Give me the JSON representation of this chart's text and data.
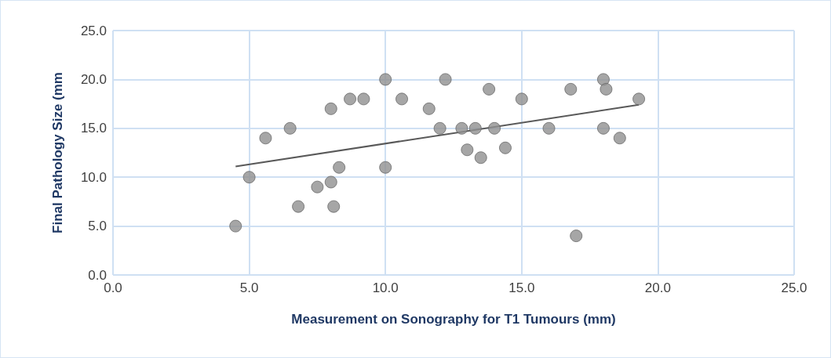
{
  "chart_data": {
    "type": "scatter",
    "xlabel": "Measurement on Sonography for T1 Tumours (mm)",
    "ylabel": "Final Pathology Size (mm",
    "xlim": [
      0,
      25
    ],
    "xticks": [
      {
        "value": 0,
        "label": "0.0"
      },
      {
        "value": 5,
        "label": "5.0"
      },
      {
        "value": 10,
        "label": "10.0"
      },
      {
        "value": 15,
        "label": "15.0"
      },
      {
        "value": 20,
        "label": "20.0"
      },
      {
        "value": 25,
        "label": "25.0"
      }
    ],
    "ylim": [
      0,
      25
    ],
    "yticks": [
      {
        "value": 0,
        "label": "0.0"
      },
      {
        "value": 5,
        "label": "5.0"
      },
      {
        "value": 10,
        "label": "10.0"
      },
      {
        "value": 15,
        "label": "15.0"
      },
      {
        "value": 20,
        "label": "20.0"
      },
      {
        "value": 25,
        "label": "25.0"
      }
    ],
    "grid": true,
    "series": [
      {
        "color": "#909090",
        "marker": "circle",
        "x": [
          4.5,
          5,
          5.6,
          6.5,
          6.8,
          7.5,
          8,
          8,
          8.1,
          8.3,
          8.7,
          9.2,
          10,
          10,
          10.6,
          11.6,
          12,
          12.2,
          12.8,
          13,
          13.3,
          13.5,
          13.8,
          14,
          14.4,
          15,
          16,
          16.8,
          17,
          18,
          18,
          18.1,
          18.6,
          19.3
        ],
        "values": [
          5,
          10,
          14,
          15,
          7,
          9,
          9.5,
          17,
          7,
          11,
          18,
          18,
          20,
          11,
          18,
          17,
          15,
          20,
          15,
          12.8,
          15,
          12,
          19,
          15,
          13,
          18,
          15,
          19,
          4,
          20,
          15,
          19,
          14,
          18
        ]
      },
      {
        "type": "line",
        "color": "#595959",
        "x": [
          4.5,
          19.3
        ],
        "values": [
          11.1,
          17.4
        ]
      }
    ]
  }
}
